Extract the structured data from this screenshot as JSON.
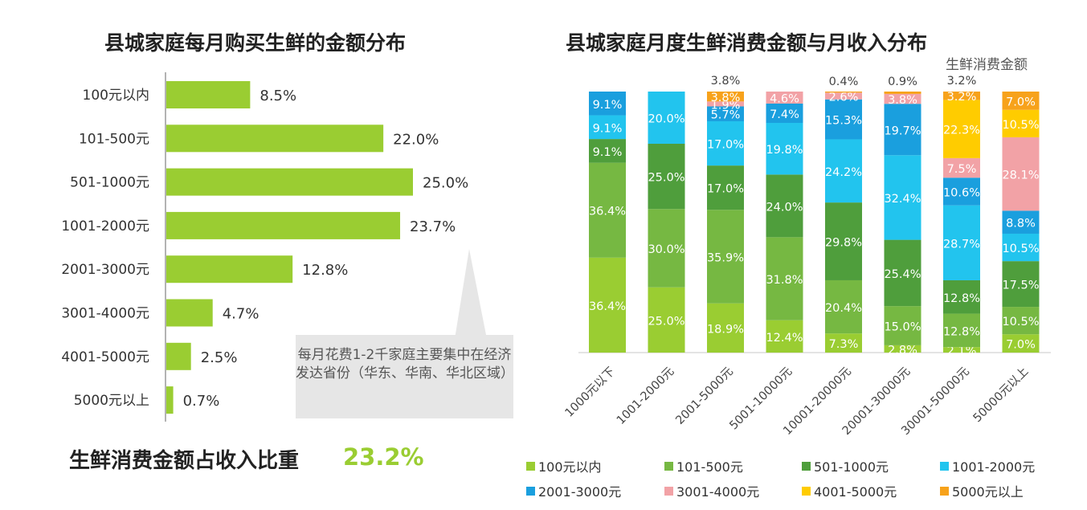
{
  "left_title": "县城家庭每月购买生鲜的金额分布",
  "right_title": "县城家庭月度生鲜消费金额与月收入分布",
  "series_label": "生鲜消费金额",
  "ratio": {
    "label": "生鲜消费金额占收入比重",
    "value": "23.2%"
  },
  "callout": "每月花费1-2千家庭主要集中在经济发达省份（华东、华南、华北区域）",
  "colors": {
    "bar": "#9ACD32",
    "series": [
      "#9ACD32",
      "#76B842",
      "#4F9E3C",
      "#22C4EE",
      "#1A9FDE",
      "#F2A2A6",
      "#FFCC00",
      "#F7A21B"
    ]
  },
  "chart_data": [
    {
      "type": "bar",
      "orientation": "horizontal",
      "title": "县城家庭每月购买生鲜的金额分布",
      "categories": [
        "100元以内",
        "101-500元",
        "501-1000元",
        "1001-2000元",
        "2001-3000元",
        "3001-4000元",
        "4001-5000元",
        "5000元以上"
      ],
      "values": [
        8.5,
        22.0,
        25.0,
        23.7,
        12.8,
        4.7,
        2.5,
        0.7
      ],
      "value_labels": [
        "8.5%",
        "22.0%",
        "25.0%",
        "23.7%",
        "12.8%",
        "4.7%",
        "2.5%",
        "0.7%"
      ],
      "xlim": [
        0,
        30
      ],
      "grid": false
    },
    {
      "type": "bar",
      "stacked": true,
      "percent": true,
      "title": "县城家庭月度生鲜消费金额与月收入分布",
      "categories": [
        "1000元以下",
        "1001-2000元",
        "2001-5000元",
        "5001-10000元",
        "10001-20000元",
        "20001-30000元",
        "30001-50000元",
        "50000元以上"
      ],
      "series": [
        {
          "name": "100元以内",
          "values": [
            36.4,
            25.0,
            18.9,
            12.4,
            7.3,
            2.8,
            2.1,
            7.0
          ]
        },
        {
          "name": "101-500元",
          "values": [
            36.4,
            30.0,
            35.9,
            31.8,
            20.4,
            15.0,
            12.8,
            10.5
          ]
        },
        {
          "name": "501-1000元",
          "values": [
            9.1,
            25.0,
            17.0,
            24.0,
            29.8,
            25.4,
            12.8,
            17.5
          ]
        },
        {
          "name": "1001-2000元",
          "values": [
            9.1,
            20.0,
            17.0,
            19.8,
            24.2,
            32.4,
            28.7,
            10.5
          ]
        },
        {
          "name": "2001-3000元",
          "values": [
            9.1,
            0,
            5.7,
            7.4,
            15.3,
            19.7,
            10.6,
            8.8
          ]
        },
        {
          "name": "3001-4000元",
          "values": [
            0,
            0,
            1.9,
            4.6,
            2.6,
            3.8,
            7.5,
            28.1
          ]
        },
        {
          "name": "4001-5000元",
          "values": [
            0,
            0,
            0,
            0,
            0,
            0,
            22.3,
            10.5
          ]
        },
        {
          "name": "5000元以上",
          "values": [
            0,
            0,
            3.8,
            0,
            0.4,
            0.9,
            3.2,
            7.0
          ]
        }
      ],
      "legend_position": "bottom",
      "ylim": [
        0,
        100
      ],
      "grid": false
    }
  ]
}
